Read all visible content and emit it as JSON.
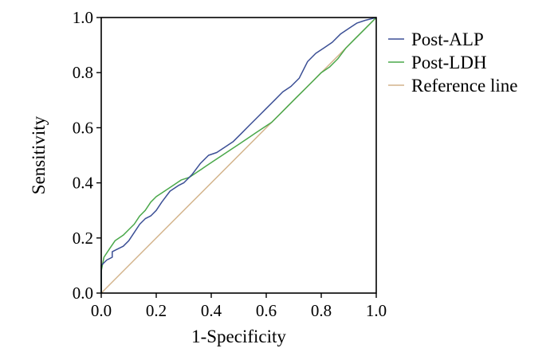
{
  "chart_data": {
    "type": "line",
    "title": "",
    "xlabel": "1-Specificity",
    "ylabel": "Sensitivity",
    "xlim": [
      0.0,
      1.0
    ],
    "ylim": [
      0.0,
      1.0
    ],
    "x_ticks": [
      "0.0",
      "0.2",
      "0.4",
      "0.6",
      "0.8",
      "1.0"
    ],
    "y_ticks": [
      "0.0",
      "0.2",
      "0.4",
      "0.6",
      "0.8",
      "1.0"
    ],
    "grid": false,
    "legend_position": "right",
    "series": [
      {
        "name": "Post-ALP",
        "color": "#3b4f95",
        "points": [
          [
            0.0,
            0.0
          ],
          [
            0.0,
            0.1
          ],
          [
            0.02,
            0.12
          ],
          [
            0.04,
            0.13
          ],
          [
            0.04,
            0.15
          ],
          [
            0.06,
            0.16
          ],
          [
            0.08,
            0.17
          ],
          [
            0.1,
            0.19
          ],
          [
            0.12,
            0.22
          ],
          [
            0.14,
            0.25
          ],
          [
            0.16,
            0.27
          ],
          [
            0.18,
            0.28
          ],
          [
            0.2,
            0.3
          ],
          [
            0.22,
            0.33
          ],
          [
            0.25,
            0.37
          ],
          [
            0.28,
            0.39
          ],
          [
            0.3,
            0.4
          ],
          [
            0.33,
            0.43
          ],
          [
            0.36,
            0.47
          ],
          [
            0.39,
            0.5
          ],
          [
            0.42,
            0.51
          ],
          [
            0.45,
            0.53
          ],
          [
            0.48,
            0.55
          ],
          [
            0.51,
            0.58
          ],
          [
            0.54,
            0.61
          ],
          [
            0.57,
            0.64
          ],
          [
            0.6,
            0.67
          ],
          [
            0.63,
            0.7
          ],
          [
            0.66,
            0.73
          ],
          [
            0.69,
            0.75
          ],
          [
            0.72,
            0.78
          ],
          [
            0.75,
            0.84
          ],
          [
            0.78,
            0.87
          ],
          [
            0.81,
            0.89
          ],
          [
            0.84,
            0.91
          ],
          [
            0.87,
            0.94
          ],
          [
            0.9,
            0.96
          ],
          [
            0.93,
            0.98
          ],
          [
            0.96,
            0.99
          ],
          [
            1.0,
            1.0
          ]
        ]
      },
      {
        "name": "Post-LDH",
        "color": "#4aa84a",
        "points": [
          [
            0.0,
            0.0
          ],
          [
            0.0,
            0.08
          ],
          [
            0.01,
            0.13
          ],
          [
            0.03,
            0.16
          ],
          [
            0.05,
            0.19
          ],
          [
            0.08,
            0.21
          ],
          [
            0.1,
            0.23
          ],
          [
            0.12,
            0.25
          ],
          [
            0.14,
            0.28
          ],
          [
            0.16,
            0.3
          ],
          [
            0.18,
            0.33
          ],
          [
            0.2,
            0.35
          ],
          [
            0.23,
            0.37
          ],
          [
            0.26,
            0.39
          ],
          [
            0.29,
            0.41
          ],
          [
            0.32,
            0.42
          ],
          [
            0.35,
            0.44
          ],
          [
            0.38,
            0.46
          ],
          [
            0.41,
            0.48
          ],
          [
            0.44,
            0.5
          ],
          [
            0.47,
            0.52
          ],
          [
            0.5,
            0.54
          ],
          [
            0.53,
            0.56
          ],
          [
            0.56,
            0.58
          ],
          [
            0.59,
            0.6
          ],
          [
            0.62,
            0.62
          ],
          [
            0.65,
            0.65
          ],
          [
            0.68,
            0.68
          ],
          [
            0.71,
            0.71
          ],
          [
            0.74,
            0.74
          ],
          [
            0.77,
            0.77
          ],
          [
            0.8,
            0.8
          ],
          [
            0.83,
            0.82
          ],
          [
            0.86,
            0.85
          ],
          [
            0.89,
            0.89
          ],
          [
            0.92,
            0.92
          ],
          [
            0.95,
            0.95
          ],
          [
            1.0,
            1.0
          ]
        ]
      },
      {
        "name": "Reference line",
        "color": "#d3b48c",
        "points": [
          [
            0.0,
            0.0
          ],
          [
            1.0,
            1.0
          ]
        ]
      }
    ]
  }
}
